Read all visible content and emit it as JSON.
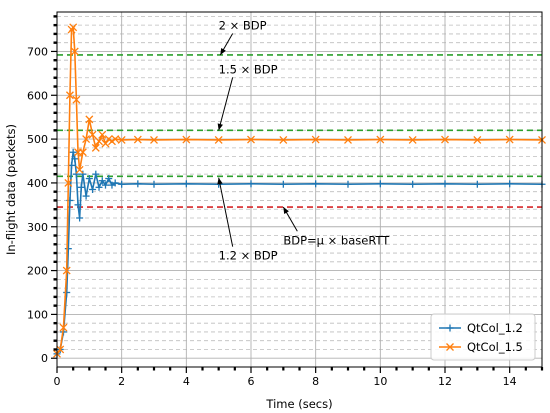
{
  "chart_data": {
    "type": "line",
    "xlabel": "Time (secs)",
    "ylabel": "In-flight data (packets)",
    "xlim": [
      0,
      15
    ],
    "ylim": [
      -20,
      790
    ],
    "xticks": [
      0,
      2,
      4,
      6,
      8,
      10,
      12,
      14
    ],
    "yticks": [
      0,
      100,
      200,
      300,
      400,
      500,
      600,
      700
    ],
    "grid": true,
    "legend_position": "lower-right",
    "reference_lines": [
      {
        "y": 345,
        "color": "#d62728"
      },
      {
        "y": 415,
        "color": "#2ca02c"
      },
      {
        "y": 520,
        "color": "#2ca02c"
      },
      {
        "y": 692,
        "color": "#2ca02c"
      }
    ],
    "series": [
      {
        "name": "QtCol_1.2",
        "color": "#1f77b4",
        "marker": "+",
        "x": [
          0.0,
          0.1,
          0.2,
          0.3,
          0.35,
          0.4,
          0.45,
          0.5,
          0.55,
          0.6,
          0.65,
          0.7,
          0.75,
          0.8,
          0.9,
          1.0,
          1.1,
          1.2,
          1.3,
          1.4,
          1.5,
          1.6,
          1.7,
          1.8,
          2.0,
          2.5,
          3,
          4,
          5,
          6,
          7,
          8,
          9,
          10,
          11,
          12,
          13,
          14,
          15
        ],
        "y": [
          10,
          20,
          60,
          150,
          250,
          360,
          440,
          470,
          455,
          420,
          350,
          320,
          390,
          420,
          370,
          410,
          385,
          420,
          390,
          405,
          395,
          410,
          395,
          400,
          397,
          398,
          397,
          398,
          397,
          398,
          397,
          398,
          397,
          398,
          397,
          398,
          397,
          398,
          397
        ]
      },
      {
        "name": "QtCol_1.5",
        "color": "#ff7f0e",
        "marker": "x",
        "x": [
          0.0,
          0.1,
          0.2,
          0.3,
          0.35,
          0.4,
          0.45,
          0.5,
          0.55,
          0.6,
          0.65,
          0.7,
          0.8,
          0.9,
          1.0,
          1.1,
          1.2,
          1.3,
          1.4,
          1.5,
          1.6,
          1.7,
          1.8,
          2.0,
          2.5,
          3,
          4,
          5,
          6,
          7,
          8,
          9,
          10,
          11,
          12,
          13,
          14,
          15
        ],
        "y": [
          10,
          20,
          70,
          200,
          400,
          600,
          750,
          755,
          700,
          590,
          470,
          430,
          470,
          500,
          545,
          510,
          480,
          495,
          510,
          490,
          500,
          495,
          500,
          498,
          499,
          498,
          499,
          498,
          499,
          498,
          499,
          498,
          499,
          498,
          499,
          498,
          499,
          498
        ]
      }
    ],
    "annotations": [
      {
        "text": "2 × BDP",
        "text_x": 5.0,
        "text_y": 750,
        "arrow_x": 5.05,
        "arrow_y": 692
      },
      {
        "text": "1.5 × BDP",
        "text_x": 5.0,
        "text_y": 650,
        "arrow_x": 5.0,
        "arrow_y": 520
      },
      {
        "text": "1.2 × BDP",
        "text_x": 5.0,
        "text_y": 225,
        "arrow_x": 5.0,
        "arrow_y": 412
      },
      {
        "text": "BDP=μ × baseRTT",
        "text_x": 7.0,
        "text_y": 260,
        "arrow_x": 7.0,
        "arrow_y": 345
      }
    ]
  }
}
